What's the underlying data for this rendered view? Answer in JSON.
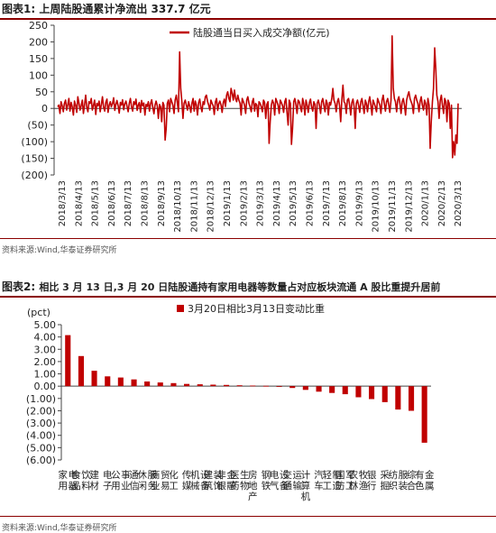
{
  "figure1": {
    "label": "图表1:",
    "title": "上周陆股通累计净流出 337.7 亿元",
    "source": "资料来源:Wind,华泰证券研究所"
  },
  "figure2": {
    "label": "图表2:",
    "title": "相比 3 月 13 日,3 月 20 日陆股通持有家用电器等数量占对应板块流通 A 股比重提升居前",
    "source": "资料来源:Wind,华泰证券研究所"
  },
  "colors": {
    "series": "#c00000",
    "title_rule": "#8b0000"
  },
  "chart_data": [
    {
      "type": "line",
      "title": "",
      "xlabel": "",
      "ylabel": "",
      "legend_placement": "top-center",
      "grid": false,
      "ylim": [
        -200,
        250
      ],
      "yticks": [
        250,
        200,
        150,
        100,
        50,
        0,
        -50,
        -100,
        -150,
        -200
      ],
      "ytick_labels": [
        "250",
        "200",
        "150",
        "100",
        "50",
        "0",
        "(50)",
        "(100)",
        "(150)",
        "(200)"
      ],
      "xtick_labels": [
        "2018/3/13",
        "2018/4/13",
        "2018/5/13",
        "2018/6/13",
        "2018/7/13",
        "2018/8/13",
        "2018/9/13",
        "2018/10/13",
        "2018/11/13",
        "2018/12/13",
        "2019/1/13",
        "2019/2/13",
        "2019/3/13",
        "2019/4/13",
        "2019/5/13",
        "2019/6/13",
        "2019/7/13",
        "2019/8/13",
        "2019/9/13",
        "2019/10/13",
        "2019/11/13",
        "2019/12/13",
        "2020/1/13",
        "2020/2/13",
        "2020/3/13"
      ],
      "series": [
        {
          "name": "陆股通当日买入成交净额(亿元)",
          "x_start": "2018/3/13",
          "x_end": "2020/3/20",
          "values": [
            5,
            10,
            -15,
            20,
            8,
            -10,
            15,
            25,
            -5,
            12,
            30,
            -8,
            18,
            5,
            -20,
            22,
            10,
            -12,
            35,
            15,
            -5,
            8,
            25,
            -15,
            12,
            40,
            5,
            -10,
            20,
            15,
            30,
            -5,
            10,
            25,
            -18,
            15,
            8,
            22,
            -10,
            12,
            35,
            5,
            -8,
            18,
            28,
            -12,
            10,
            20,
            5,
            15,
            32,
            -6,
            12,
            24,
            8,
            -14,
            18,
            10,
            26,
            -4,
            14,
            22,
            6,
            -10,
            16,
            30,
            4,
            -8,
            20,
            12,
            28,
            -6,
            10,
            18,
            -12,
            24,
            8,
            16,
            -20,
            12,
            6,
            20,
            -8,
            14,
            26,
            4,
            -16,
            10,
            22,
            8,
            -30,
            12,
            5,
            -40,
            18,
            10,
            -95,
            -60,
            15,
            25,
            -10,
            30,
            20,
            10,
            -15,
            25,
            40,
            15,
            -10,
            170,
            60,
            20,
            -30,
            15,
            25,
            10,
            -5,
            20,
            8,
            -12,
            15,
            30,
            -8,
            22,
            10,
            -20,
            18,
            28,
            5,
            -10,
            20,
            12,
            35,
            40,
            20,
            10,
            -5,
            25,
            15,
            8,
            -18,
            20,
            30,
            -6,
            14,
            22,
            10,
            -12,
            18,
            28,
            6,
            40,
            50,
            30,
            20,
            60,
            45,
            25,
            55,
            30,
            20,
            40,
            25,
            15,
            -20,
            30,
            20,
            10,
            -15,
            25,
            35,
            15,
            5,
            -10,
            20,
            30,
            -8,
            15,
            10,
            -25,
            20,
            15,
            5,
            -10,
            25,
            18,
            -30,
            12,
            20,
            -105,
            -40,
            10,
            25,
            15,
            -20,
            30,
            20,
            10,
            -15,
            25,
            18,
            8,
            -12,
            20,
            30,
            -10,
            -50,
            25,
            15,
            -108,
            -60,
            20,
            30,
            10,
            -15,
            25,
            20,
            5,
            -10,
            30,
            15,
            -20,
            25,
            10,
            -12,
            18,
            28,
            5,
            -8,
            20,
            12,
            -60,
            15,
            25,
            10,
            -15,
            20,
            30,
            8,
            -10,
            25,
            15,
            -20,
            18,
            10,
            30,
            60,
            25,
            15,
            -10,
            20,
            30,
            10,
            -40,
            25,
            70,
            20,
            15,
            -15,
            25,
            30,
            10,
            -20,
            18,
            28,
            5,
            -60,
            15,
            25,
            10,
            -12,
            20,
            30,
            8,
            -15,
            25,
            15,
            -10,
            20,
            35,
            10,
            -20,
            25,
            15,
            5,
            -10,
            30,
            20,
            10,
            -15,
            25,
            40,
            15,
            -8,
            20,
            30,
            10,
            -12,
            25,
            218,
            60,
            30,
            20,
            -10,
            25,
            35,
            15,
            -15,
            20,
            30,
            10,
            -20,
            25,
            40,
            50,
            30,
            20,
            10,
            -15,
            30,
            40,
            25,
            15,
            -10,
            20,
            35,
            10,
            -5,
            25,
            15,
            -20,
            30,
            10,
            -120,
            -40,
            20,
            60,
            182,
            120,
            40,
            20,
            -30,
            25,
            40,
            10,
            -15,
            30,
            20,
            -40,
            25,
            15,
            -60,
            10,
            -148,
            -100,
            -140,
            -80,
            -105,
            15
          ]
        }
      ]
    },
    {
      "type": "bar",
      "title": "",
      "xlabel": "",
      "ylabel": "(pct)",
      "legend_placement": "top-center",
      "grid": false,
      "ylim": [
        -6,
        5
      ],
      "yticks": [
        5,
        4,
        3,
        2,
        1,
        0,
        -1,
        -2,
        -3,
        -4,
        -5,
        -6
      ],
      "ytick_labels": [
        "5.00",
        "4.00",
        "3.00",
        "2.00",
        "1.00",
        "0.00",
        "(1.00)",
        "(2.00)",
        "(3.00)",
        "(4.00)",
        "(5.00)",
        "(6.00)"
      ],
      "categories": [
        "家用电器",
        "食品饮料",
        "建材",
        "电子",
        "公用事业",
        "通信",
        "休闲服务",
        "商业贸易",
        "化工",
        "传媒",
        "机械设备",
        "建筑装饰",
        "非银金融",
        "医药生物",
        "房地产",
        "钢铁",
        "电气设备",
        "交通运输",
        "计算机",
        "汽车",
        "轻工制造",
        "国防军工",
        "农林牧渔",
        "银行",
        "采掘",
        "纺织服装",
        "综合",
        "有色金属"
      ],
      "series": [
        {
          "name": "3月20日相比3月13日变动比重",
          "values": [
            4.15,
            2.45,
            1.25,
            0.8,
            0.7,
            0.55,
            0.38,
            0.3,
            0.25,
            0.18,
            0.15,
            0.12,
            0.1,
            0.07,
            0.05,
            0.03,
            -0.05,
            -0.15,
            -0.3,
            -0.45,
            -0.55,
            -0.65,
            -0.9,
            -1.05,
            -1.3,
            -1.9,
            -2.0,
            -4.6
          ]
        }
      ]
    }
  ]
}
